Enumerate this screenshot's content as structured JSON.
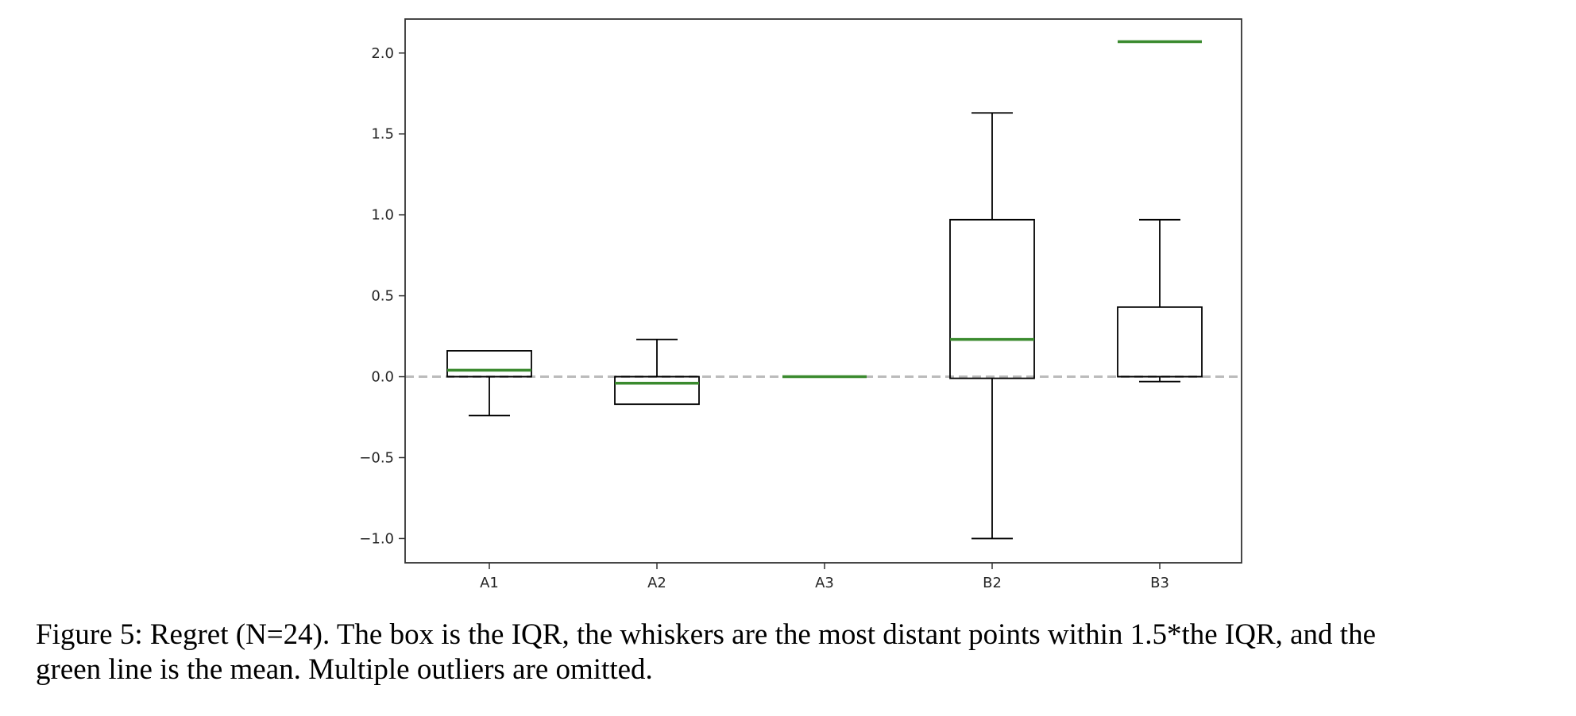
{
  "chart_data": {
    "type": "box",
    "categories": [
      "A1",
      "A2",
      "A3",
      "B2",
      "B3"
    ],
    "boxes": [
      {
        "label": "A1",
        "whisker_low": -0.24,
        "q1": 0.0,
        "median": 0.0,
        "q3": 0.16,
        "whisker_high": 0.16,
        "mean": 0.04
      },
      {
        "label": "A2",
        "whisker_low": -0.17,
        "q1": -0.17,
        "median": 0.0,
        "q3": 0.0,
        "whisker_high": 0.23,
        "mean": -0.04
      },
      {
        "label": "A3",
        "whisker_low": 0.0,
        "q1": 0.0,
        "median": 0.0,
        "q3": 0.0,
        "whisker_high": 0.0,
        "mean": 0.0
      },
      {
        "label": "B2",
        "whisker_low": -1.0,
        "q1": -0.01,
        "median": 0.23,
        "q3": 0.97,
        "whisker_high": 1.63,
        "mean": 0.23
      },
      {
        "label": "B3",
        "whisker_low": -0.03,
        "q1": 0.0,
        "median": 0.0,
        "q3": 0.43,
        "whisker_high": 0.97,
        "mean": 2.07
      }
    ],
    "yticks": [
      "2.0",
      "1.5",
      "1.0",
      "0.5",
      "0.0",
      "−0.5",
      "−1.0"
    ],
    "ytick_values": [
      2.0,
      1.5,
      1.0,
      0.5,
      0.0,
      -0.5,
      -1.0
    ],
    "ylim": [
      -1.15,
      2.21
    ],
    "reference_line": 0.0,
    "grid": false,
    "colors": {
      "mean": "#3a8a2e",
      "box": "#000000",
      "reference": "#bbbbbb",
      "axes": "#333333"
    }
  },
  "caption": {
    "line1": "Figure 5: Regret (N=24). The box is the IQR, the whiskers are the most distant points within 1.5*the IQR, and the",
    "line2": "green line is the mean. Multiple outliers are omitted."
  }
}
